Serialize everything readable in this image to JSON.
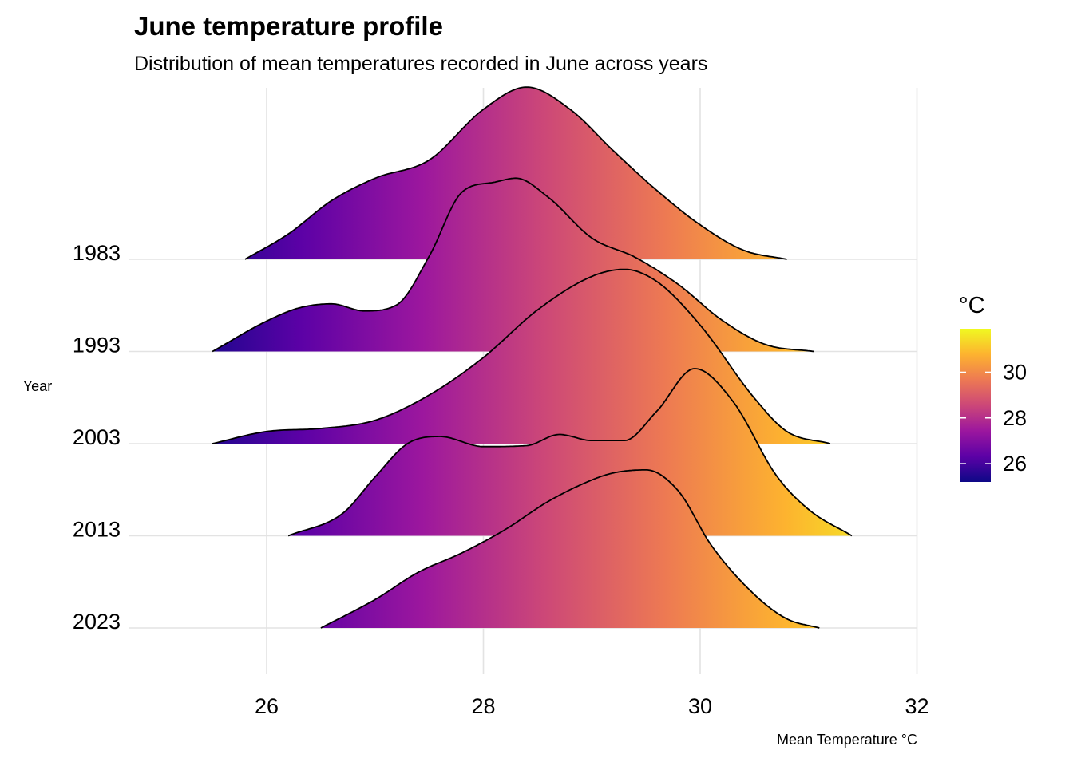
{
  "chart_data": {
    "type": "ridgeline",
    "title": "June temperature profile",
    "subtitle": "Distribution of mean temperatures recorded in June across years",
    "xlabel": "Mean Temperature °C",
    "ylabel": "Year",
    "xlim": [
      24.8,
      32.0
    ],
    "x_ticks": [
      26,
      28,
      30,
      32
    ],
    "categories": [
      "1983",
      "1993",
      "2003",
      "2013",
      "2023"
    ],
    "legend": {
      "title": "°C",
      "position": "right",
      "range": [
        25.2,
        31.9
      ],
      "ticks": [
        26,
        28,
        30
      ],
      "colors": [
        "#0d0887",
        "#5c01a6",
        "#9c179e",
        "#cc4778",
        "#ed7953",
        "#fdb32f",
        "#f0f921"
      ]
    },
    "grid": true,
    "series": [
      {
        "name": "1983",
        "x": [
          25.8,
          26.2,
          26.6,
          27.0,
          27.5,
          28.0,
          28.4,
          28.8,
          29.2,
          29.6,
          30.0,
          30.4,
          30.8
        ],
        "density": [
          0.0,
          0.25,
          0.58,
          0.8,
          0.98,
          1.48,
          1.7,
          1.48,
          1.07,
          0.68,
          0.34,
          0.09,
          0.0
        ]
      },
      {
        "name": "1993",
        "x": [
          25.5,
          26.0,
          26.3,
          26.6,
          26.9,
          27.2,
          27.5,
          27.8,
          28.1,
          28.3,
          28.6,
          29.0,
          29.4,
          29.8,
          30.2,
          30.6,
          31.05
        ],
        "density": [
          0.0,
          0.3,
          0.43,
          0.47,
          0.4,
          0.46,
          0.94,
          1.57,
          1.67,
          1.71,
          1.52,
          1.12,
          0.93,
          0.66,
          0.31,
          0.07,
          0.0
        ]
      },
      {
        "name": "2003",
        "x": [
          25.5,
          26.0,
          26.5,
          27.0,
          27.5,
          28.0,
          28.5,
          29.0,
          29.3,
          29.6,
          30.0,
          30.5,
          30.8,
          31.2
        ],
        "density": [
          0.0,
          0.12,
          0.15,
          0.23,
          0.48,
          0.85,
          1.32,
          1.65,
          1.72,
          1.6,
          1.17,
          0.45,
          0.12,
          0.0
        ]
      },
      {
        "name": "2013",
        "x": [
          26.2,
          26.7,
          27.0,
          27.3,
          27.6,
          28.0,
          28.4,
          28.7,
          29.0,
          29.3,
          29.6,
          29.95,
          30.3,
          30.7,
          31.0,
          31.4
        ],
        "density": [
          0.0,
          0.22,
          0.58,
          0.91,
          0.98,
          0.88,
          0.89,
          1.0,
          0.94,
          0.94,
          1.23,
          1.65,
          1.33,
          0.6,
          0.26,
          0.0
        ]
      },
      {
        "name": "2023",
        "x": [
          26.5,
          27.0,
          27.4,
          27.8,
          28.2,
          28.6,
          29.0,
          29.2,
          29.5,
          29.8,
          30.1,
          30.5,
          30.8,
          31.1
        ],
        "density": [
          0.0,
          0.28,
          0.55,
          0.74,
          0.97,
          1.25,
          1.46,
          1.53,
          1.56,
          1.35,
          0.82,
          0.33,
          0.09,
          0.0
        ]
      }
    ]
  }
}
